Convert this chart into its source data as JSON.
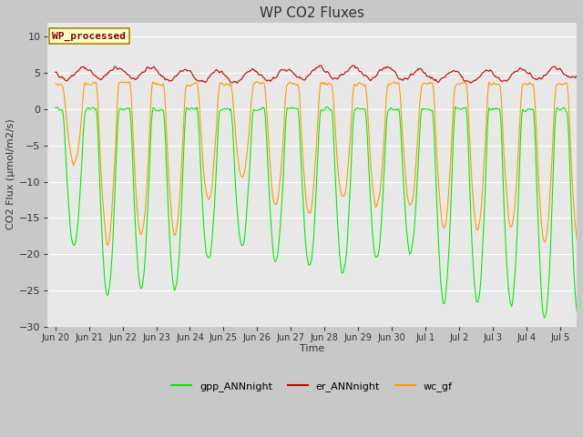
{
  "title": "WP CO2 Fluxes",
  "ylabel": "CO2 Flux (μmol/m2/s)",
  "xlabel": "Time",
  "ylim": [
    -30,
    12
  ],
  "yticks": [
    -30,
    -25,
    -20,
    -15,
    -10,
    -5,
    0,
    5,
    10
  ],
  "bg_color": "#c8c8c8",
  "plot_bg": "#e8e8e8",
  "legend_label": "WP_processed",
  "legend_box_color": "#ffffcc",
  "legend_box_edge": "#aa8800",
  "legend_text_color": "#880000",
  "line_gpp_color": "#00ee00",
  "line_er_color": "#cc0000",
  "line_wc_color": "#ff9900",
  "legend_entries": [
    "gpp_ANNnight",
    "er_ANNnight",
    "wc_gf"
  ],
  "legend_colors": [
    "#00ee00",
    "#cc0000",
    "#ff9900"
  ],
  "points_per_day": 48,
  "title_fontsize": 11
}
